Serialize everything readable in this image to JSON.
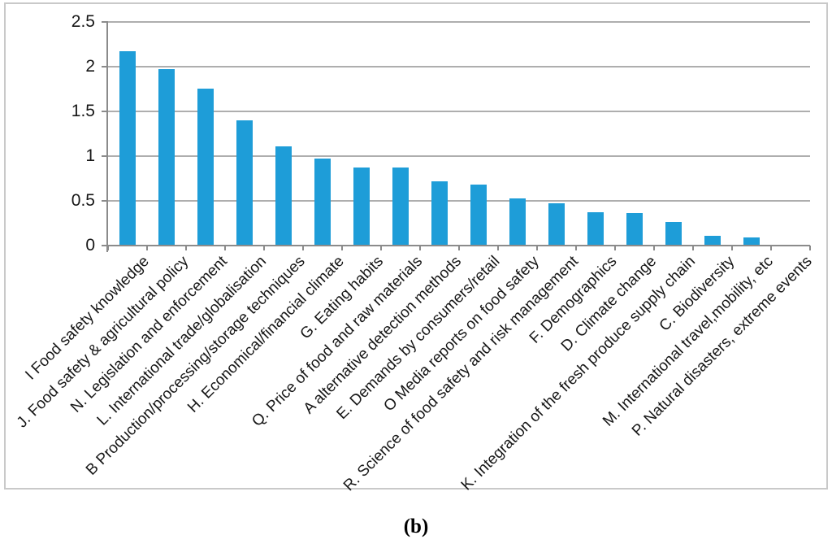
{
  "caption": "(b)",
  "colors": {
    "bar": "#1E9DD8",
    "gridline": "#AEAEAE",
    "axis": "#8B8B8B",
    "frame_border": "#C9C9C9",
    "text": "#171717",
    "background": "#FFFFFF"
  },
  "chart_data": {
    "type": "bar",
    "title": "",
    "xlabel": "",
    "ylabel": "",
    "legend": "none",
    "grid": "horizontal gridlines on",
    "ylim": [
      0,
      2.5
    ],
    "ytick_labels": [
      "2.5",
      "2",
      "1.5",
      "1",
      "0.5",
      "0"
    ],
    "categories": [
      "I Food safety knowledge",
      "J. Food safety & agricultural policy",
      "N. Legislation and enforcement",
      "L. International trade/globalisation",
      "B Production/processing/storage techniques",
      "H. Economical/financial climate",
      "G. Eating habits",
      "Q. Price of food and raw materials",
      "A alternative detection methods",
      "E. Demands by consumers/retail",
      "O Media reports on food safety",
      "R. Science of food safety and risk management",
      "F. Demographics",
      "D. Climate change",
      "K. Integration of the fresh produce supply chain",
      "C. Biodiversity",
      "M. International travel,mobility, etc",
      "P. Natural disasters, extreme events"
    ],
    "values": [
      2.17,
      1.97,
      1.75,
      1.4,
      1.11,
      0.97,
      0.87,
      0.87,
      0.72,
      0.68,
      0.53,
      0.47,
      0.37,
      0.36,
      0.26,
      0.11,
      0.09,
      0
    ],
    "bar_color": "#1E9DD8",
    "x_labels_rotation_deg": -45
  }
}
